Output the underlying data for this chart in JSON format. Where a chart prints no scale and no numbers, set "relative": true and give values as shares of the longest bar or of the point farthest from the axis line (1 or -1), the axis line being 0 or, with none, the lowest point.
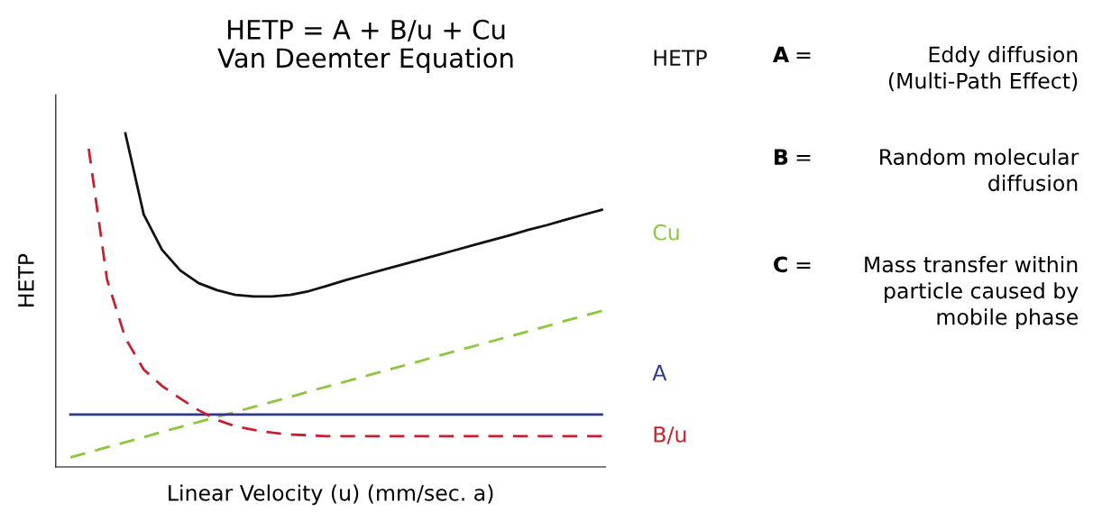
{
  "chart_data": {
    "type": "line",
    "title": "HETP = A + B/u + Cu\nVan Deemter Equation",
    "xlabel": "Linear Velocity (u) (mm/sec. a)",
    "ylabel": "HETP",
    "relative": true,
    "legend": false,
    "categories": [
      null,
      null,
      null,
      null,
      null,
      null,
      null,
      null,
      null,
      null,
      null,
      null,
      null,
      null,
      null,
      null,
      null,
      null,
      null,
      null,
      null,
      null,
      null,
      null,
      null,
      null,
      null,
      null,
      null,
      null
    ],
    "series": [
      {
        "name": "HETP",
        "color": "#111111",
        "line_style": "solid",
        "values": [
          null,
          null,
          null,
          1.0,
          0.757,
          0.651,
          0.589,
          0.551,
          0.53,
          0.516,
          0.511,
          0.511,
          0.516,
          0.527,
          0.543,
          0.56,
          0.575,
          0.59,
          0.605,
          0.62,
          0.635,
          0.65,
          0.665,
          0.68,
          0.695,
          0.711,
          0.725,
          0.741,
          0.756,
          0.771
        ]
      },
      {
        "name": "Cu",
        "color": "#8dc63f",
        "line_style": "dashed",
        "values": [
          0.029,
          0.044,
          0.059,
          0.074,
          0.089,
          0.105,
          0.12,
          0.135,
          0.15,
          0.165,
          0.18,
          0.195,
          0.21,
          0.226,
          0.241,
          0.256,
          0.271,
          0.286,
          0.301,
          0.316,
          0.332,
          0.347,
          0.362,
          0.377,
          0.392,
          0.407,
          0.422,
          0.438,
          0.453,
          0.468
        ]
      },
      {
        "name": "A",
        "color": "#2e3a87",
        "line_style": "solid",
        "values": [
          0.157,
          0.157,
          0.157,
          0.157,
          0.157,
          0.157,
          0.157,
          0.157,
          0.157,
          0.157,
          0.157,
          0.157,
          0.157,
          0.157,
          0.157,
          0.157,
          0.157,
          0.157,
          0.157,
          0.157,
          0.157,
          0.157,
          0.157,
          0.157,
          0.157,
          0.157,
          0.157,
          0.157,
          0.157,
          0.157
        ]
      },
      {
        "name": "B/u",
        "color": "#c8202f",
        "line_style": "dashed",
        "values": [
          null,
          0.954,
          0.562,
          0.386,
          0.292,
          0.243,
          0.205,
          0.17,
          0.141,
          0.122,
          0.111,
          0.103,
          0.097,
          0.095,
          0.092,
          0.092,
          0.092,
          0.092,
          0.092,
          0.092,
          0.092,
          0.092,
          0.092,
          0.092,
          0.092,
          0.092,
          0.092,
          0.092,
          0.092,
          0.092
        ]
      }
    ],
    "annotations": [
      "A = Eddy diffusion\n(Multi-Path Effect)",
      "B = Random molecular\ndiffusion",
      "C = Mass transfer within\nparticle caused by\nmobile phase"
    ]
  }
}
